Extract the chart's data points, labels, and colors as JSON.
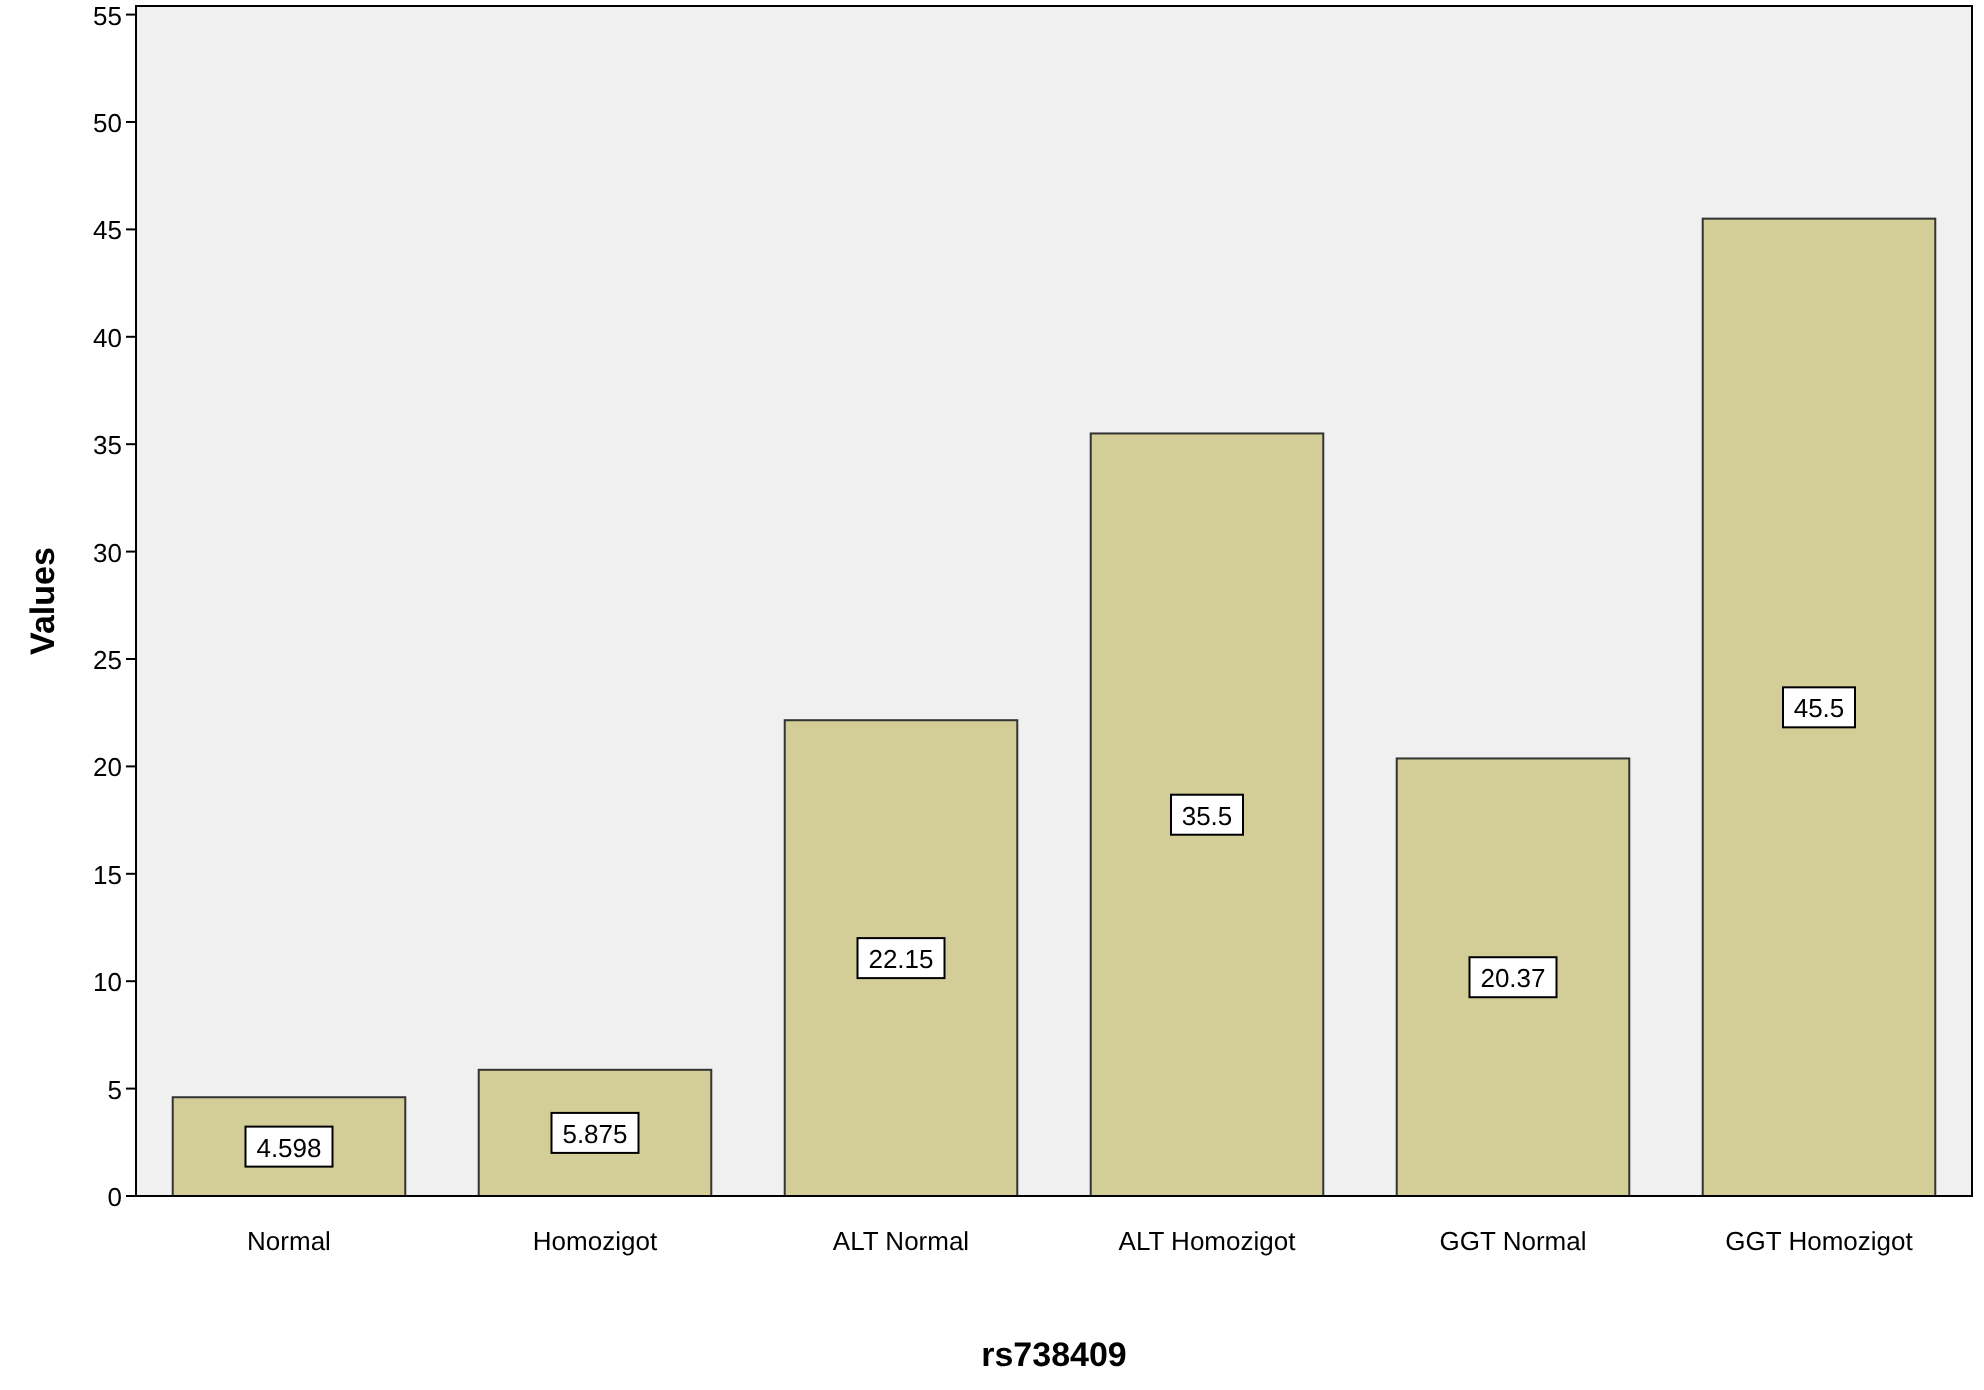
{
  "chart_data": {
    "type": "bar",
    "xlabel": "rs738409",
    "ylabel": "Values",
    "categories": [
      "Normal",
      "Homozigot",
      "ALT Normal",
      "ALT Homozigot",
      "GGT Normal",
      "GGT Homozigot"
    ],
    "values": [
      4.598,
      5.875,
      22.15,
      35.5,
      20.37,
      45.5
    ],
    "color": "#d3ce97",
    "ylim": [
      0,
      55.4
    ],
    "yticks": [
      0,
      5,
      10,
      15,
      20,
      25,
      30,
      35,
      40,
      45,
      50,
      55
    ],
    "grid": false,
    "data_labels": true
  }
}
